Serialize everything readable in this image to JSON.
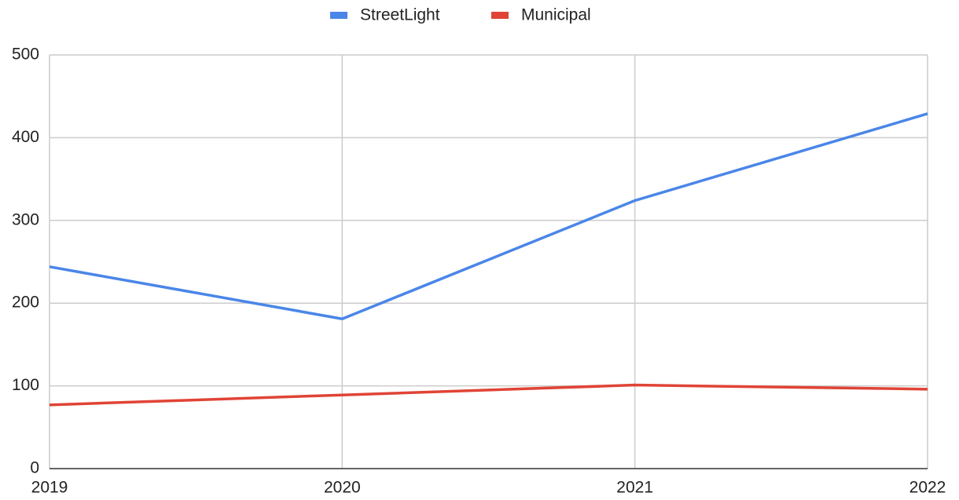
{
  "chart_data": {
    "type": "line",
    "x": [
      2019,
      2020,
      2021,
      2022
    ],
    "series": [
      {
        "name": "StreetLight",
        "color": "#4a86e8",
        "values": [
          244,
          181,
          324,
          429
        ]
      },
      {
        "name": "Municipal",
        "color": "#e04436",
        "values": [
          77,
          89,
          101,
          96
        ]
      }
    ],
    "xlim": [
      2019,
      2022
    ],
    "xticks": [
      2019,
      2020,
      2021,
      2022
    ],
    "ylim": [
      0,
      500
    ],
    "yticks": [
      0,
      100,
      200,
      300,
      400,
      500
    ],
    "grid": true,
    "legend": "top"
  }
}
